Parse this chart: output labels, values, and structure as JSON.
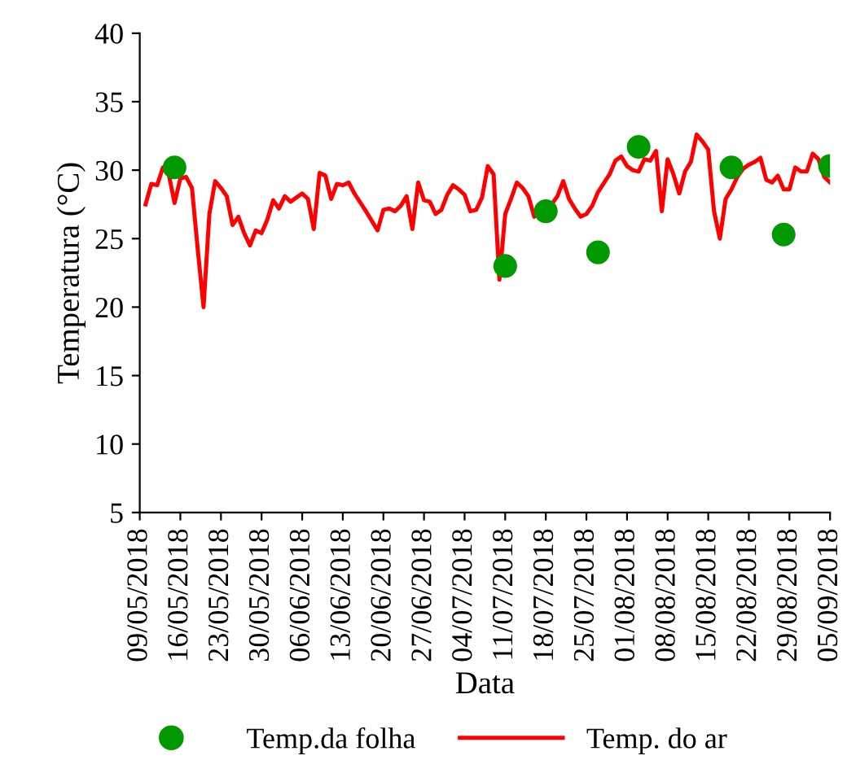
{
  "chart_data": {
    "type": "line",
    "xlabel": "Data",
    "ylabel": "Temperatura (°C)",
    "ylim": [
      5,
      40
    ],
    "yticks": [
      5,
      10,
      15,
      20,
      25,
      30,
      35,
      40
    ],
    "xlim": [
      "2018-05-09",
      "2018-09-05"
    ],
    "xticks": [
      {
        "value": "2018-05-09",
        "label": "09/05/2018"
      },
      {
        "value": "2018-05-16",
        "label": "16/05/2018"
      },
      {
        "value": "2018-05-23",
        "label": "23/05/2018"
      },
      {
        "value": "2018-05-30",
        "label": "30/05/2018"
      },
      {
        "value": "2018-06-06",
        "label": "06/06/2018"
      },
      {
        "value": "2018-06-13",
        "label": "13/06/2018"
      },
      {
        "value": "2018-06-20",
        "label": "20/06/2018"
      },
      {
        "value": "2018-06-27",
        "label": "27/06/2018"
      },
      {
        "value": "2018-07-04",
        "label": "04/07/2018"
      },
      {
        "value": "2018-07-11",
        "label": "11/07/2018"
      },
      {
        "value": "2018-07-18",
        "label": "18/07/2018"
      },
      {
        "value": "2018-07-25",
        "label": "25/07/2018"
      },
      {
        "value": "2018-08-01",
        "label": "01/08/2018"
      },
      {
        "value": "2018-08-08",
        "label": "08/08/2018"
      },
      {
        "value": "2018-08-15",
        "label": "15/08/2018"
      },
      {
        "value": "2018-08-22",
        "label": "22/08/2018"
      },
      {
        "value": "2018-08-29",
        "label": "29/08/2018"
      },
      {
        "value": "2018-09-05",
        "label": "05/09/2018"
      }
    ],
    "grid": false,
    "legend": "bottom",
    "series": [
      {
        "name": "Temp.da folha",
        "type": "scatter",
        "marker": "circle",
        "color": "#009900",
        "x": [
          "2018-05-15",
          "2018-07-11",
          "2018-07-18",
          "2018-07-27",
          "2018-08-03",
          "2018-08-19",
          "2018-08-28",
          "2018-09-05"
        ],
        "values": [
          30.2,
          23.0,
          27.0,
          24.0,
          31.7,
          30.2,
          25.3,
          30.3
        ]
      },
      {
        "name": "Temp. do ar",
        "line_style": "solid",
        "color": "#ff0000",
        "x": [
          "2018-05-10",
          "2018-05-11",
          "2018-05-12",
          "2018-05-13",
          "2018-05-14",
          "2018-05-15",
          "2018-05-16",
          "2018-05-17",
          "2018-05-18",
          "2018-05-19",
          "2018-05-20",
          "2018-05-21",
          "2018-05-22",
          "2018-05-23",
          "2018-05-24",
          "2018-05-25",
          "2018-05-26",
          "2018-05-27",
          "2018-05-28",
          "2018-05-29",
          "2018-05-30",
          "2018-05-31",
          "2018-06-01",
          "2018-06-02",
          "2018-06-03",
          "2018-06-04",
          "2018-06-06",
          "2018-06-07",
          "2018-06-08",
          "2018-06-09",
          "2018-06-10",
          "2018-06-11",
          "2018-06-12",
          "2018-06-13",
          "2018-06-14",
          "2018-06-15",
          "2018-06-17",
          "2018-06-19",
          "2018-06-20",
          "2018-06-21",
          "2018-06-22",
          "2018-06-23",
          "2018-06-24",
          "2018-06-25",
          "2018-06-26",
          "2018-06-27",
          "2018-06-28",
          "2018-06-29",
          "2018-06-30",
          "2018-07-01",
          "2018-07-02",
          "2018-07-03",
          "2018-07-04",
          "2018-07-05",
          "2018-07-06",
          "2018-07-07",
          "2018-07-08",
          "2018-07-09",
          "2018-07-10",
          "2018-07-11",
          "2018-07-12",
          "2018-07-13",
          "2018-07-14",
          "2018-07-15",
          "2018-07-16",
          "2018-07-17",
          "2018-07-18",
          "2018-07-19",
          "2018-07-20",
          "2018-07-21",
          "2018-07-22",
          "2018-07-23",
          "2018-07-24",
          "2018-07-25",
          "2018-07-26",
          "2018-07-27",
          "2018-07-29",
          "2018-07-30",
          "2018-07-31",
          "2018-08-01",
          "2018-08-02",
          "2018-08-03",
          "2018-08-04",
          "2018-08-05",
          "2018-08-06",
          "2018-08-07",
          "2018-08-08",
          "2018-08-09",
          "2018-08-10",
          "2018-08-11",
          "2018-08-12",
          "2018-08-13",
          "2018-08-14",
          "2018-08-15",
          "2018-08-16",
          "2018-08-17",
          "2018-08-18",
          "2018-08-19",
          "2018-08-20",
          "2018-08-21",
          "2018-08-22",
          "2018-08-23",
          "2018-08-24",
          "2018-08-25",
          "2018-08-26",
          "2018-08-27",
          "2018-08-28",
          "2018-08-29",
          "2018-08-30",
          "2018-08-31",
          "2018-09-01",
          "2018-09-02",
          "2018-09-03",
          "2018-09-04",
          "2018-09-05"
        ],
        "values": [
          27.5,
          29.0,
          28.9,
          30.2,
          29.7,
          27.6,
          29.4,
          29.5,
          28.7,
          24.2,
          20.0,
          26.8,
          29.2,
          28.7,
          28.1,
          26.0,
          26.6,
          25.4,
          24.5,
          25.6,
          25.4,
          26.4,
          27.8,
          27.2,
          28.1,
          27.7,
          28.3,
          27.9,
          25.7,
          29.8,
          29.6,
          27.9,
          29.0,
          28.9,
          29.1,
          28.3,
          27.0,
          25.6,
          27.1,
          27.2,
          27.0,
          27.4,
          28.1,
          25.7,
          29.1,
          27.8,
          27.7,
          26.8,
          27.1,
          28.2,
          28.9,
          28.6,
          28.2,
          27.0,
          27.1,
          28.0,
          30.3,
          29.7,
          22.0,
          26.8,
          27.9,
          29.1,
          28.7,
          28.1,
          26.6,
          27.0,
          27.2,
          27.5,
          28.1,
          29.2,
          27.9,
          27.2,
          26.6,
          26.8,
          27.4,
          28.4,
          29.7,
          30.7,
          31.0,
          30.3,
          30.0,
          29.9,
          30.8,
          30.7,
          31.4,
          27.0,
          30.8,
          29.7,
          28.3,
          29.9,
          30.6,
          32.6,
          32.1,
          31.5,
          27.0,
          25.0,
          27.9,
          28.6,
          29.5,
          30.1,
          30.4,
          30.6,
          30.9,
          29.3,
          29.1,
          29.6,
          28.6,
          28.6,
          30.2,
          29.9,
          29.9,
          31.2,
          30.8,
          29.5,
          29.1
        ]
      }
    ]
  }
}
